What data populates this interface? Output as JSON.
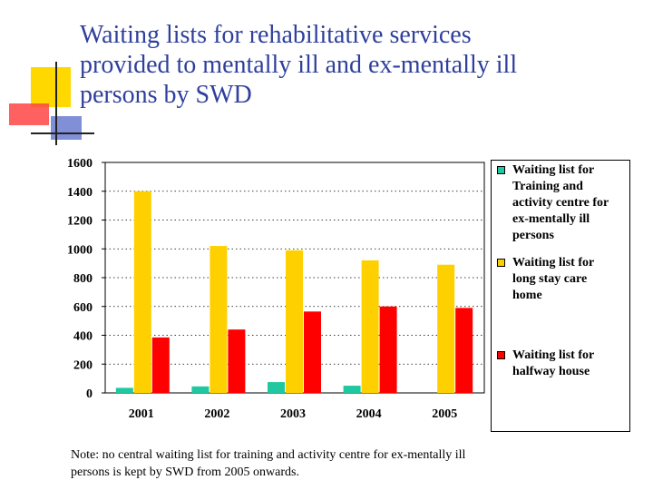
{
  "slide": {
    "title_lines": [
      "Waiting lists for rehabilitative services",
      "provided to mentally ill and ex-mentally ill",
      "persons by SWD"
    ],
    "note_lines": [
      "Note: no central waiting list for training and activity centre for ex-mentally ill",
      "persons is kept by SWD from 2005 onwards."
    ]
  },
  "colors": {
    "title": "#2e3f9c",
    "deco_yellow": "#ffd800",
    "deco_red": "#ff3030",
    "deco_blue": "#5f6fc8"
  },
  "chart_data": {
    "type": "bar",
    "categories": [
      "2001",
      "2002",
      "2003",
      "2004",
      "2005"
    ],
    "ylim": [
      0,
      1600
    ],
    "yticks": [
      "0",
      "200",
      "400",
      "600",
      "800",
      "1000",
      "1200",
      "1400",
      "1600"
    ],
    "grid": "dotted horizontal",
    "legend_position": "right",
    "series": [
      {
        "name": "Waiting list for Training and activity centre for ex-mentally ill persons",
        "legend_lines": [
          "Waiting list for",
          "Training and",
          "activity centre for",
          "ex-mentally ill",
          "persons"
        ],
        "color": "#1fc8a0",
        "values": [
          35,
          45,
          75,
          50,
          null
        ]
      },
      {
        "name": "Waiting list for long stay care home",
        "legend_lines": [
          "Waiting list for",
          "long stay care",
          "home"
        ],
        "color": "#ffd000",
        "values": [
          1400,
          1020,
          990,
          920,
          890
        ]
      },
      {
        "name": "Waiting list for halfway house",
        "legend_lines": [
          "Waiting list for",
          "halfway house"
        ],
        "color": "#ff0000",
        "values": [
          385,
          440,
          565,
          600,
          590
        ]
      }
    ]
  }
}
